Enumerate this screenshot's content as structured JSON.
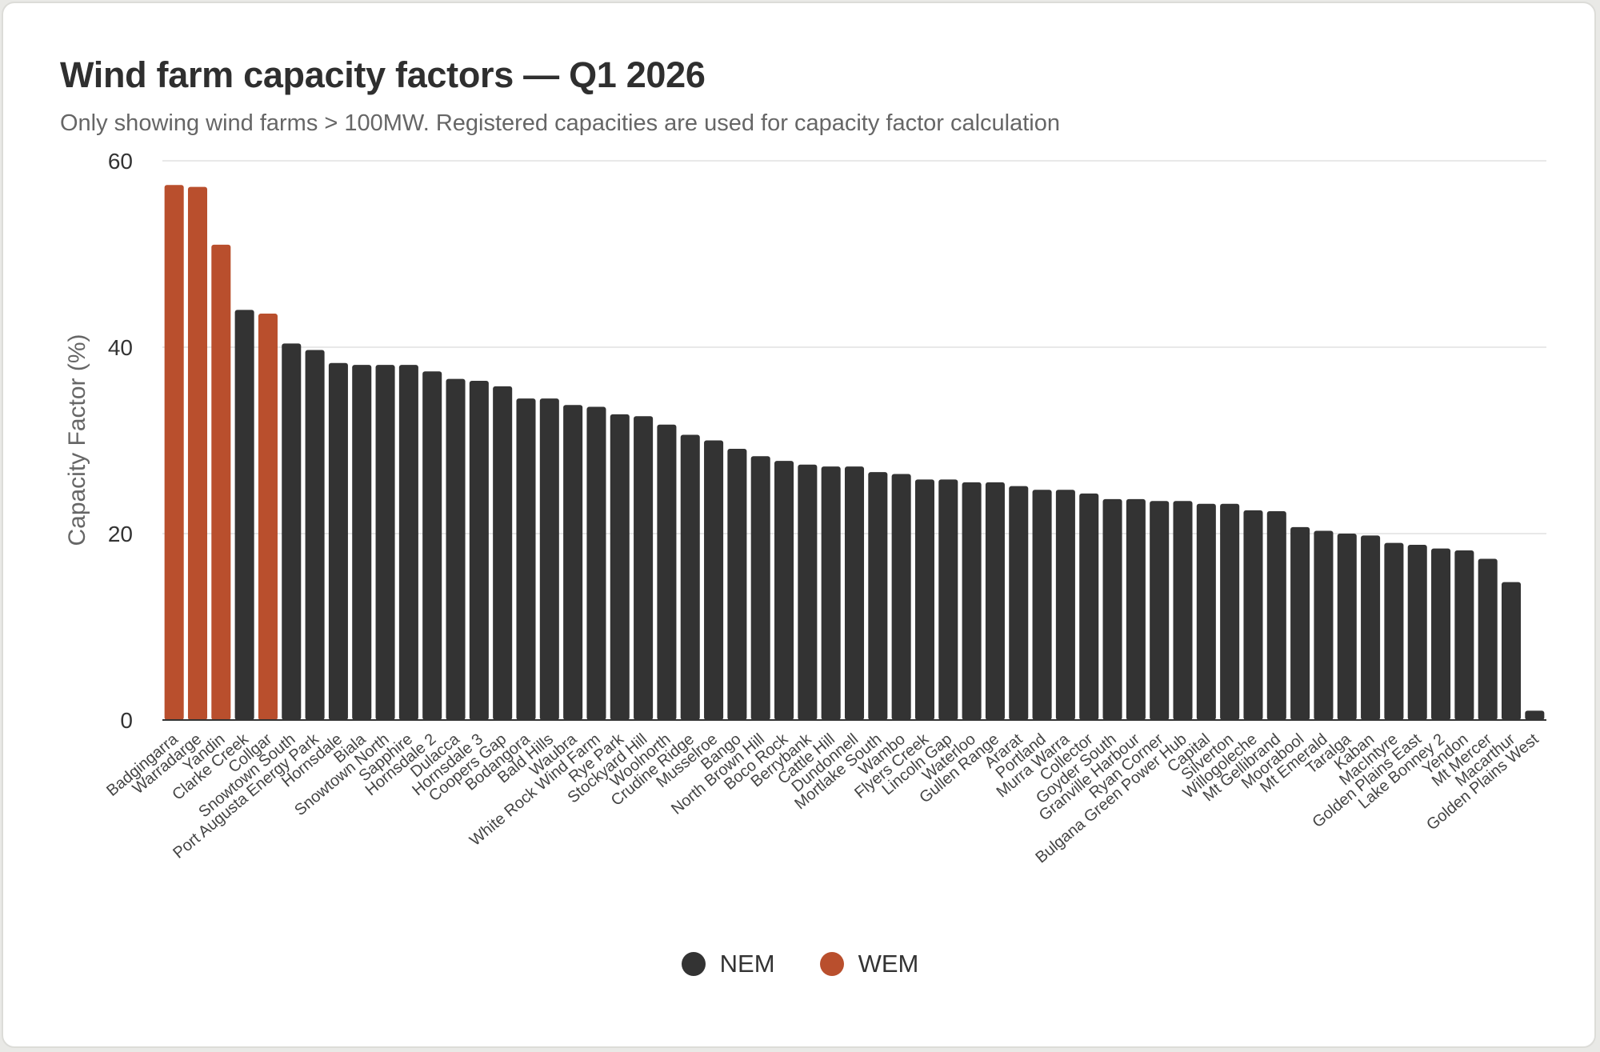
{
  "title": "Wind farm capacity factors — Q1 2026",
  "subtitle": "Only showing wind farms > 100MW. Registered capacities are used for capacity factor calculation",
  "colors": {
    "NEM": "#333333",
    "WEM": "#b94f2d",
    "grid": "#e8e8e8",
    "axis": "#333333"
  },
  "legend": [
    {
      "label": "NEM",
      "color": "#333333"
    },
    {
      "label": "WEM",
      "color": "#b94f2d"
    }
  ],
  "chart_data": {
    "type": "bar",
    "title": "Wind farm capacity factors — Q1 2026",
    "subtitle": "Only showing wind farms > 100MW. Registered capacities are used for capacity factor calculation",
    "xlabel": "",
    "ylabel": "Capacity Factor (%)",
    "ylim": [
      0,
      60
    ],
    "yticks": [
      0,
      20,
      40,
      60
    ],
    "grid": true,
    "legend_position": "bottom-center",
    "categories": [
      "Badgingarra",
      "Warradarge",
      "Yandin",
      "Clarke Creek",
      "Collgar",
      "Snowtown South",
      "Port Augusta Energy Park",
      "Hornsdale",
      "Biala",
      "Snowtown North",
      "Sapphire",
      "Hornsdale 2",
      "Dulacca",
      "Hornsdale 3",
      "Coopers Gap",
      "Bodangora",
      "Bald Hills",
      "Waubra",
      "White Rock Wind Farm",
      "Rye Park",
      "Stockyard Hill",
      "Woolnorth",
      "Crudine Ridge",
      "Musselroe",
      "Bango",
      "North Brown Hill",
      "Boco Rock",
      "Berrybank",
      "Cattle Hill",
      "Dundonnell",
      "Mortlake South",
      "Wambo",
      "Flyers Creek",
      "Lincoln Gap",
      "Waterloo",
      "Gullen Range",
      "Ararat",
      "Portland",
      "Murra Warra",
      "Collector",
      "Goyder South",
      "Granville Harbour",
      "Ryan Corner",
      "Bulgana Green Power Hub",
      "Capital",
      "Silverton",
      "Willogoleche",
      "Mt Gellibrand",
      "Moorabool",
      "Mt Emerald",
      "Taralga",
      "Kaban",
      "MacIntyre",
      "Golden Plains East",
      "Lake Bonney 2",
      "Yendon",
      "Mt Mercer",
      "Macarthur",
      "Golden Plains West"
    ],
    "values": [
      57.4,
      57.2,
      51.0,
      44.0,
      43.6,
      40.4,
      39.7,
      38.3,
      38.1,
      38.1,
      38.1,
      37.4,
      36.6,
      36.4,
      35.8,
      34.5,
      34.5,
      33.8,
      33.6,
      32.8,
      32.6,
      31.7,
      30.6,
      30.0,
      29.1,
      28.3,
      27.8,
      27.4,
      27.2,
      27.2,
      26.6,
      26.4,
      25.8,
      25.8,
      25.5,
      25.5,
      25.1,
      24.7,
      24.7,
      24.3,
      23.7,
      23.7,
      23.5,
      23.5,
      23.2,
      23.2,
      22.5,
      22.4,
      20.7,
      20.3,
      20.0,
      19.8,
      19.0,
      18.8,
      18.4,
      18.2,
      17.3,
      14.8,
      1.0
    ],
    "market": [
      "WEM",
      "WEM",
      "WEM",
      "NEM",
      "WEM",
      "NEM",
      "NEM",
      "NEM",
      "NEM",
      "NEM",
      "NEM",
      "NEM",
      "NEM",
      "NEM",
      "NEM",
      "NEM",
      "NEM",
      "NEM",
      "NEM",
      "NEM",
      "NEM",
      "NEM",
      "NEM",
      "NEM",
      "NEM",
      "NEM",
      "NEM",
      "NEM",
      "NEM",
      "NEM",
      "NEM",
      "NEM",
      "NEM",
      "NEM",
      "NEM",
      "NEM",
      "NEM",
      "NEM",
      "NEM",
      "NEM",
      "NEM",
      "NEM",
      "NEM",
      "NEM",
      "NEM",
      "NEM",
      "NEM",
      "NEM",
      "NEM",
      "NEM",
      "NEM",
      "NEM",
      "NEM",
      "NEM",
      "NEM",
      "NEM",
      "NEM",
      "NEM",
      "NEM"
    ],
    "series": [
      {
        "name": "NEM",
        "color": "#333333"
      },
      {
        "name": "WEM",
        "color": "#b94f2d"
      }
    ]
  }
}
